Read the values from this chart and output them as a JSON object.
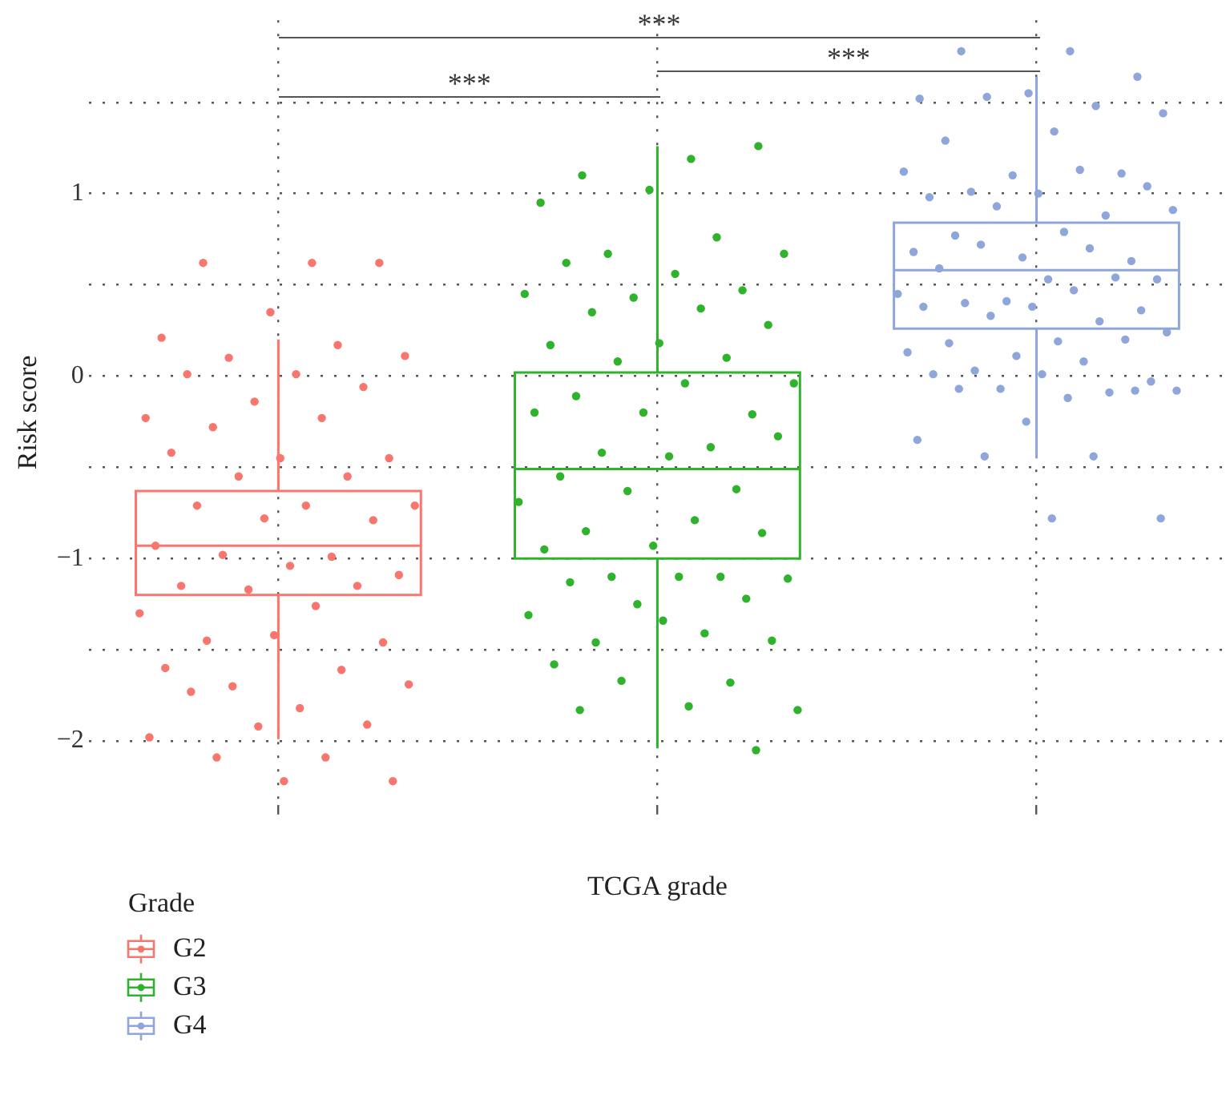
{
  "chart_data": {
    "type": "box",
    "xlabel": "TCGA grade",
    "ylabel": "Risk score",
    "legend_title": "Grade",
    "legend": "bottom left",
    "grid": true,
    "marker": "circle",
    "categories": [
      null,
      null,
      null
    ],
    "ylim": [
      -2.35,
      1.95
    ],
    "yticks": [
      {
        "value": -2,
        "label": "−2"
      },
      {
        "value": -1.5,
        "label": null
      },
      {
        "value": -1,
        "label": "−1"
      },
      {
        "value": -0.5,
        "label": null
      },
      0,
      {
        "value": 0.5,
        "label": null
      },
      1,
      {
        "value": 1.5,
        "label": null
      }
    ],
    "annotations": [
      "***",
      "***",
      "***"
    ],
    "series": [
      {
        "name": "G2",
        "color": "#f8766d",
        "boxes": [
          {
            "low": -1.99,
            "q1": -1.2,
            "median": -0.93,
            "q3": -0.63,
            "high": 0.2,
            "outliers": [
              0.62,
              0.62,
              0.62,
              0.35,
              0.21,
              0.17,
              0.1,
              0.11,
              0.01,
              0.01,
              -0.06,
              -0.14,
              -0.23,
              -0.23,
              -0.28,
              -0.45,
              -0.45,
              -0.42,
              -0.55,
              -0.55,
              -0.71,
              -0.71,
              -0.71,
              -0.79,
              -0.78,
              -0.93,
              -0.99,
              -0.98,
              -1.09,
              -1.04,
              -1.15,
              -1.15,
              -1.17,
              -1.3,
              -1.26,
              -1.45,
              -1.46,
              -1.42,
              -1.6,
              -1.61,
              -1.7,
              -1.69,
              -1.82,
              -1.73,
              -1.91,
              -1.92,
              -1.98,
              -2.09,
              -2.09,
              -2.22,
              -2.22
            ]
          },
          null,
          null
        ]
      },
      {
        "name": "G3",
        "color": "#2fb22c",
        "boxes": [
          null,
          {
            "low": -2.04,
            "q1": -1.0,
            "median": -0.51,
            "q3": 0.02,
            "high": 1.26,
            "outliers": [
              1.19,
              1.1,
              1.26,
              1.02,
              0.95,
              0.76,
              0.67,
              0.67,
              0.56,
              0.62,
              0.47,
              0.43,
              0.45,
              0.37,
              0.35,
              0.28,
              0.18,
              0.17,
              0.1,
              0.08,
              -0.04,
              -0.04,
              -0.11,
              -0.21,
              -0.2,
              -0.2,
              -0.39,
              -0.42,
              -0.33,
              -0.44,
              -0.55,
              -0.62,
              -0.63,
              -0.69,
              -0.79,
              -0.85,
              -0.86,
              -0.93,
              -0.95,
              -1.1,
              -1.1,
              -1.11,
              -1.1,
              -1.13,
              -1.22,
              -1.25,
              -1.31,
              -1.41,
              -1.46,
              -1.45,
              -1.34,
              -1.58,
              -1.68,
              -1.67,
              -1.83,
              -1.81,
              -1.83,
              -2.05
            ]
          },
          null
        ]
      },
      {
        "name": "G4",
        "color": "#8fa6db",
        "boxes": [
          null,
          null,
          {
            "low": -0.45,
            "q1": 0.26,
            "median": 0.58,
            "q3": 0.84,
            "high": 1.64,
            "outliers": [
              1.78,
              1.78,
              1.64,
              1.55,
              1.52,
              1.48,
              1.53,
              1.44,
              1.34,
              1.29,
              1.11,
              1.1,
              1.12,
              1.13,
              1.01,
              1.04,
              1.0,
              0.98,
              0.88,
              0.93,
              0.91,
              0.79,
              0.77,
              0.63,
              0.65,
              0.68,
              0.7,
              0.72,
              0.53,
              0.53,
              0.59,
              0.54,
              0.41,
              0.45,
              0.47,
              0.4,
              0.36,
              0.38,
              0.38,
              0.3,
              0.33,
              0.24,
              0.19,
              0.18,
              0.2,
              0.11,
              0.13,
              0.08,
              0.03,
              -0.03,
              0.01,
              0.01,
              -0.09,
              -0.07,
              -0.08,
              -0.12,
              -0.07,
              -0.08,
              -0.25,
              -0.35,
              -0.44,
              -0.44,
              -0.78,
              -0.78
            ]
          }
        ]
      }
    ]
  }
}
